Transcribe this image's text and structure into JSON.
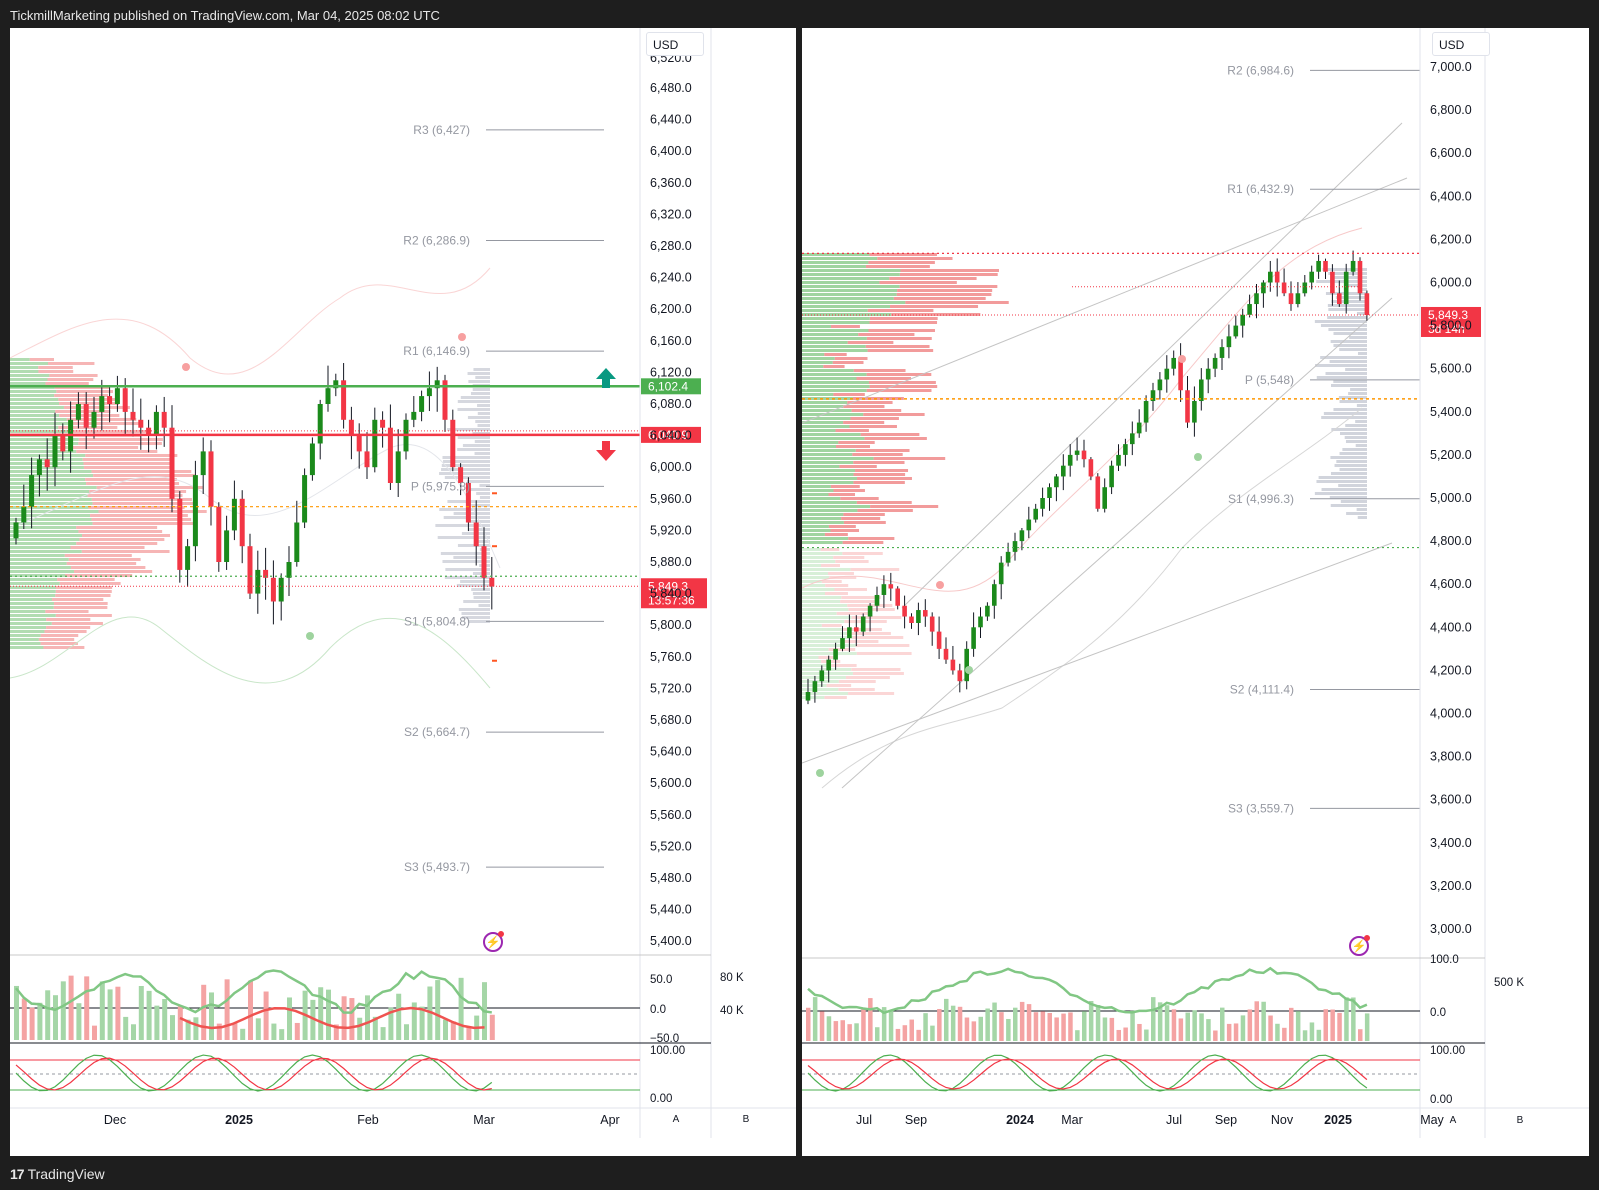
{
  "header": {
    "publish_text": "TickmillMarketing published on TradingView.com, Mar 04, 2025 08:02 UTC"
  },
  "footer": {
    "brand": "TradingView",
    "logo_glyph": "17"
  },
  "icons": {
    "bolt": "⚡",
    "arrow_up": "up-arrow-icon",
    "arrow_down": "down-arrow-icon"
  },
  "colors": {
    "up": "#089981",
    "down": "#f23645",
    "candle_up": "#1b8a1b",
    "candle_down": "#f23645",
    "support_line": "#4caf50",
    "resistance_line": "#f23645",
    "pivot_orange": "#ff9800"
  },
  "left_chart": {
    "currency": "USD",
    "price_ticks": [
      "6,480.0",
      "6,440.0",
      "6,400.0",
      "6,360.0",
      "6,320.0",
      "6,280.0",
      "6,240.0",
      "6,200.0",
      "6,160.0",
      "6,120.0",
      "6,080.0",
      "6,040.0",
      "6,000.0",
      "5,960.0",
      "5,920.0",
      "5,880.0",
      "5,840.0",
      "5,800.0",
      "5,760.0",
      "5,720.0",
      "5,680.0",
      "5,640.0",
      "5,600.0",
      "5,560.0",
      "5,520.0",
      "5,480.0",
      "5,440.0",
      "5,400.0"
    ],
    "top_clip_tick": "6,520.0",
    "pivots": [
      {
        "label": "R3 (6,427)"
      },
      {
        "label": "R2 (6,286.9)"
      },
      {
        "label": "R1 (6,146.9)"
      },
      {
        "label": "P (5,975.8)"
      },
      {
        "label": "S1 (5,804.8)"
      },
      {
        "label": "S2 (5,664.7)"
      },
      {
        "label": "S3 (5,493.7)"
      }
    ],
    "tags": {
      "green": "6,102.4",
      "red": "6,040.9",
      "last": "5,849.3",
      "countdown": "13:57:36"
    },
    "time_labels": [
      "Dec",
      "2025",
      "Feb",
      "Mar",
      "Apr"
    ],
    "volume_scale": [
      "80 K",
      "40 K"
    ],
    "rsi_scale": [
      "50.0",
      "0.0",
      "−50.0"
    ],
    "stoch_scale": [
      "100.00",
      "0.00"
    ],
    "ab": [
      "A",
      "B"
    ]
  },
  "right_chart": {
    "currency": "USD",
    "price_ticks": [
      "7,000.0",
      "6,800.0",
      "6,600.0",
      "6,400.0",
      "6,200.0",
      "6,000.0",
      "5,800.0",
      "5,600.0",
      "5,400.0",
      "5,200.0",
      "5,000.0",
      "4,800.0",
      "4,600.0",
      "4,400.0",
      "4,200.0",
      "4,000.0",
      "3,800.0",
      "3,600.0",
      "3,400.0",
      "3,200.0",
      "3,000.0"
    ],
    "pivots": [
      {
        "label": "R2 (6,984.6)"
      },
      {
        "label": "R1 (6,432.9)"
      },
      {
        "label": "P (5,548)"
      },
      {
        "label": "S1 (4,996.3)"
      },
      {
        "label": "S2 (4,111.4)"
      },
      {
        "label": "S3 (3,559.7)"
      }
    ],
    "tags": {
      "last": "5,849.3",
      "countdown": "3d 14h"
    },
    "time_labels": [
      "Jul",
      "Sep",
      "2024",
      "Mar",
      "Jul",
      "Sep",
      "Nov",
      "2025",
      "May"
    ],
    "volume_scale": [
      "500 K"
    ],
    "rsi_scale": [
      "100.0",
      "0.0"
    ],
    "stoch_scale": [
      "100.00",
      "0.00"
    ],
    "ab": [
      "A",
      "B"
    ]
  }
}
